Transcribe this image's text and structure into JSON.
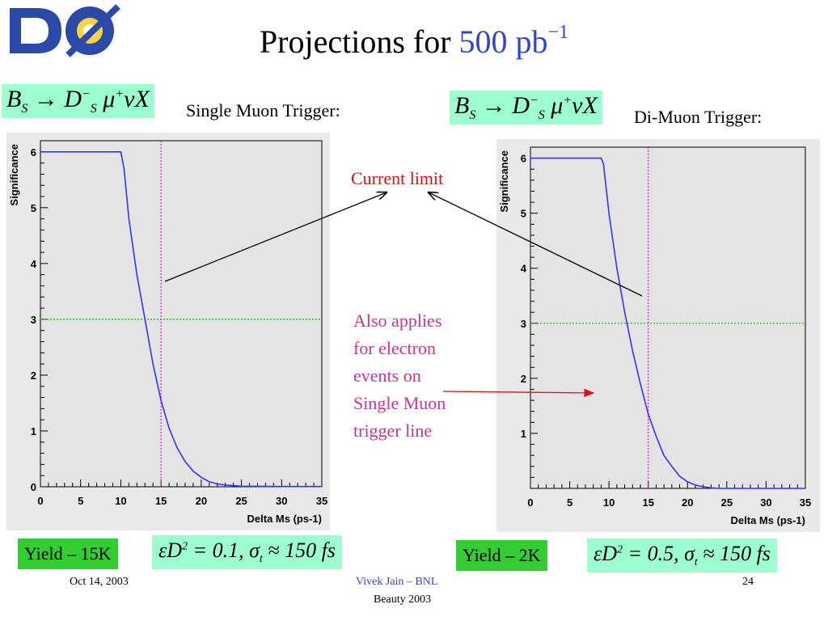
{
  "slide": {
    "logo_text": "DØ",
    "title_prefix": "Projections for ",
    "title_value": "500 pb",
    "title_exp": "−1",
    "left_label": "Single Muon Trigger:",
    "right_label": "Di-Muon Trigger:",
    "annotation_current": "Current limit",
    "annotation_applies": [
      "Also applies",
      "for electron",
      "events on",
      "Single Muon",
      "trigger line"
    ],
    "left_yield": "Yield – 15K",
    "right_yield": "Yield – 2K",
    "left_eq_prefix": "εD",
    "left_eq_value": " = 0.1,  σ",
    "left_eq_suffix": " ≈ 150 fs",
    "right_eq_prefix": "εD",
    "right_eq_value": " = 0.5,  σ",
    "right_eq_suffix": " ≈ 150 fs",
    "eq_sup": "2",
    "eq_sub": "t",
    "formula_left": "B",
    "formula_left_sub": "S",
    "formula_arrow": " → D",
    "formula_d_sup": "−",
    "formula_d_sub": "S",
    "formula_mu": " μ",
    "formula_mu_sup": "+",
    "formula_rest": "νX",
    "footer_date": "Oct 14, 2003",
    "footer_author": "Vivek Jain – BNL",
    "footer_conf": "Beauty 2003",
    "footer_page": "24"
  },
  "colors": {
    "curve": "#3333ff",
    "threshold": "#00cc00",
    "limit": "#ff00ff",
    "plot_bg": "#e9e9e9",
    "accent": "#3344cc"
  },
  "chart_data": [
    {
      "type": "line",
      "title": "",
      "xlabel": "Delta Ms (ps-1)",
      "ylabel": "Significance",
      "xlim": [
        0,
        35
      ],
      "ylim": [
        0,
        6.2
      ],
      "xticks": [
        "0",
        "5",
        "10",
        "15",
        "20",
        "25",
        "30",
        "35"
      ],
      "yticks": [
        "0",
        "1",
        "2",
        "3",
        "4",
        "5",
        "6"
      ],
      "series": [
        {
          "x": [
            0,
            10,
            10.4,
            11,
            12,
            13,
            14,
            15,
            16,
            17,
            18,
            19,
            20,
            21,
            22,
            23,
            24,
            25,
            30,
            35
          ],
          "y": [
            6,
            6,
            5.7,
            4.8,
            3.8,
            3.0,
            2.2,
            1.55,
            1.05,
            0.7,
            0.45,
            0.28,
            0.17,
            0.09,
            0.05,
            0.03,
            0.02,
            0.01,
            0.005,
            0.005
          ]
        }
      ],
      "reference_y": 3,
      "reference_x": 15
    },
    {
      "type": "line",
      "title": "",
      "xlabel": "Delta Ms (ps-1)",
      "ylabel": "Significance",
      "xlim": [
        0,
        35
      ],
      "ylim": [
        0,
        6.2
      ],
      "xticks": [
        "0",
        "5",
        "10",
        "15",
        "20",
        "25",
        "30",
        "35"
      ],
      "yticks": [
        "1",
        "2",
        "3",
        "4",
        "5",
        "6"
      ],
      "series": [
        {
          "x": [
            0,
            9,
            9.3,
            10,
            11,
            12,
            13,
            14,
            15,
            16,
            17,
            18,
            19,
            20,
            21,
            22,
            23,
            24,
            30,
            35
          ],
          "y": [
            6,
            6,
            5.9,
            5.0,
            4.0,
            3.2,
            2.5,
            1.9,
            1.35,
            0.95,
            0.6,
            0.4,
            0.22,
            0.12,
            0.06,
            0.03,
            0.01,
            0.0,
            0.0,
            0.0
          ]
        }
      ],
      "reference_y": 3,
      "reference_x": 15
    }
  ]
}
